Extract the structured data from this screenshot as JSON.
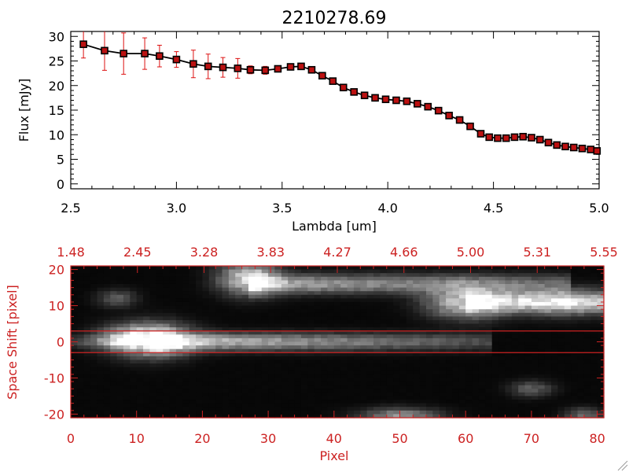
{
  "colors": {
    "axis_top": "#000000",
    "accent": "#cc2222",
    "errorbar": "#dd1111",
    "marker_fill": "#bb1111",
    "line": "#000000",
    "background": "#ffffff"
  },
  "chart_data": [
    {
      "type": "line",
      "title": "2210278.69",
      "xlabel": "Lambda [um]",
      "ylabel": "Flux [mJy]",
      "xlim": [
        2.5,
        5.0
      ],
      "ylim": [
        -1,
        31
      ],
      "xticks": [
        2.5,
        3.0,
        3.5,
        4.0,
        4.5,
        5.0
      ],
      "xtick_labels": [
        "2.5",
        "3.0",
        "3.5",
        "4.0",
        "4.5",
        "5.0"
      ],
      "yticks": [
        0,
        5,
        10,
        15,
        20,
        25,
        30
      ],
      "ytick_labels": [
        "0",
        "5",
        "10",
        "15",
        "20",
        "25",
        "30"
      ],
      "series": [
        {
          "name": "flux",
          "x": [
            2.56,
            2.66,
            2.75,
            2.85,
            2.92,
            3.0,
            3.08,
            3.15,
            3.22,
            3.29,
            3.35,
            3.42,
            3.48,
            3.54,
            3.59,
            3.64,
            3.69,
            3.74,
            3.79,
            3.84,
            3.89,
            3.94,
            3.99,
            4.04,
            4.09,
            4.14,
            4.19,
            4.24,
            4.29,
            4.34,
            4.39,
            4.44,
            4.48,
            4.52,
            4.56,
            4.6,
            4.64,
            4.68,
            4.72,
            4.76,
            4.8,
            4.84,
            4.88,
            4.92,
            4.96,
            4.99
          ],
          "y": [
            28.4,
            27.1,
            26.5,
            26.5,
            26.0,
            25.3,
            24.4,
            23.9,
            23.7,
            23.5,
            23.2,
            23.1,
            23.4,
            23.8,
            23.9,
            23.2,
            22.0,
            20.9,
            19.6,
            18.7,
            18.0,
            17.5,
            17.2,
            17.0,
            16.8,
            16.3,
            15.7,
            14.9,
            13.9,
            13.0,
            11.7,
            10.2,
            9.5,
            9.3,
            9.3,
            9.5,
            9.6,
            9.4,
            9.0,
            8.4,
            7.9,
            7.6,
            7.4,
            7.2,
            7.0,
            6.7
          ],
          "yerr": [
            2.8,
            4.0,
            4.2,
            3.2,
            2.2,
            1.6,
            2.8,
            2.5,
            2.0,
            2.0,
            0.8,
            0.8,
            0.4,
            0.4,
            0.3,
            0.3,
            0.3,
            0.3,
            0.3,
            0.3,
            0.3,
            0.3,
            0.3,
            0.3,
            0.3,
            0.3,
            0.3,
            0.3,
            0.3,
            0.3,
            0.3,
            0.3,
            0.3,
            0.3,
            0.3,
            0.3,
            0.3,
            0.3,
            0.3,
            0.3,
            0.3,
            0.3,
            0.3,
            0.3,
            0.3,
            0.3
          ]
        }
      ]
    },
    {
      "type": "heatmap",
      "xlabel": "Pixel",
      "ylabel": "Space Shift [pixel]",
      "xlim": [
        0,
        81
      ],
      "ylim": [
        -21,
        21
      ],
      "xticks": [
        0,
        10,
        20,
        30,
        40,
        50,
        60,
        70,
        80
      ],
      "xtick_labels": [
        "0",
        "10",
        "20",
        "30",
        "40",
        "50",
        "60",
        "70",
        "80"
      ],
      "yticks": [
        -20,
        -10,
        0,
        10,
        20
      ],
      "ytick_labels": [
        "-20",
        "-10",
        "0",
        "10",
        "20"
      ],
      "top_axis_label_values": [
        "1.48",
        "2.45",
        "3.28",
        "3.83",
        "4.27",
        "4.66",
        "5.00",
        "5.31",
        "5.55"
      ],
      "extraction_lines_y": [
        3,
        -3
      ],
      "cols": 81,
      "rows": 42,
      "blobs": [
        {
          "x": 12,
          "y": 0.5,
          "sx": 4,
          "sy": 3,
          "amp": 1.0
        },
        {
          "x": 8,
          "y": 1,
          "sx": 3,
          "sy": 2,
          "amp": 0.25
        },
        {
          "x": 27,
          "y": 17.5,
          "sx": 3,
          "sy": 3,
          "amp": 0.8
        },
        {
          "x": 60,
          "y": 11,
          "sx": 4,
          "sy": 3,
          "amp": 0.75
        },
        {
          "x": 75,
          "y": 11,
          "sx": 6,
          "sy": 2.5,
          "amp": 0.5
        },
        {
          "x": 7,
          "y": 12,
          "sx": 2,
          "sy": 1.6,
          "amp": 0.3
        },
        {
          "x": 70,
          "y": -13,
          "sx": 2.2,
          "sy": 1.5,
          "amp": 0.3
        },
        {
          "x": 50,
          "y": -20.5,
          "sx": 4,
          "sy": 1.5,
          "amp": 0.5
        },
        {
          "x": 78,
          "y": -20.5,
          "sx": 2,
          "sy": 1.5,
          "amp": 0.35
        }
      ],
      "streaks": [
        {
          "x0": 12,
          "x1": 64,
          "y": 0,
          "sy": 1.6,
          "amp0": 0.75,
          "amp1": 0.22
        },
        {
          "x0": 27,
          "x1": 76,
          "y": 16,
          "sy": 1.8,
          "amp0": 0.6,
          "amp1": 0.3
        },
        {
          "x0": 60,
          "x1": 81,
          "y": 11,
          "sy": 1.8,
          "amp0": 0.55,
          "amp1": 0.45
        },
        {
          "x0": 0,
          "x1": 10,
          "y": 0,
          "sy": 1.2,
          "amp0": 0.15,
          "amp1": 0.4
        }
      ]
    }
  ]
}
